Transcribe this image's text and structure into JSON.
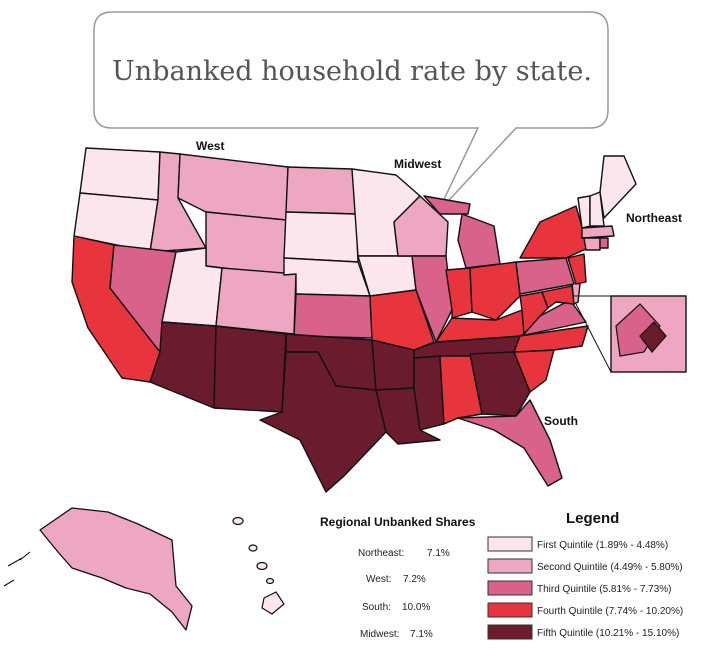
{
  "title": "Unbanked household rate by state.",
  "regions": {
    "west": "West",
    "midwest": "Midwest",
    "northeast": "Northeast",
    "south": "South"
  },
  "regional_shares": {
    "heading": "Regional Unbanked Shares",
    "rows": [
      {
        "label": "Northeast:",
        "value": "7.1%"
      },
      {
        "label": "West:",
        "value": "7.2%"
      },
      {
        "label": "South:",
        "value": "10.0%"
      },
      {
        "label": "Midwest:",
        "value": "7.1%"
      }
    ]
  },
  "legend": {
    "heading": "Legend",
    "items": [
      {
        "label": "First Quintile (1.89% - 4.48%)",
        "color": "#fbe6ee"
      },
      {
        "label": "Second Quintile (4.49% - 5.80%)",
        "color": "#eea7c2"
      },
      {
        "label": "Third Quintile (5.81% - 7.73%)",
        "color": "#d9628a"
      },
      {
        "label": "Fourth Quintile (7.74% - 10.20%)",
        "color": "#e8343d"
      },
      {
        "label": "Fifth Quintile (10.21% - 15.10%)",
        "color": "#6b1b2e"
      }
    ]
  },
  "colors": {
    "q1": "#fbe6ee",
    "q2": "#eea7c2",
    "q3": "#d9628a",
    "q4": "#e8343d",
    "q5": "#6b1b2e",
    "border": "#111111",
    "bubble_stroke": "#9a9a9a",
    "bubble_text": "#555555"
  }
}
